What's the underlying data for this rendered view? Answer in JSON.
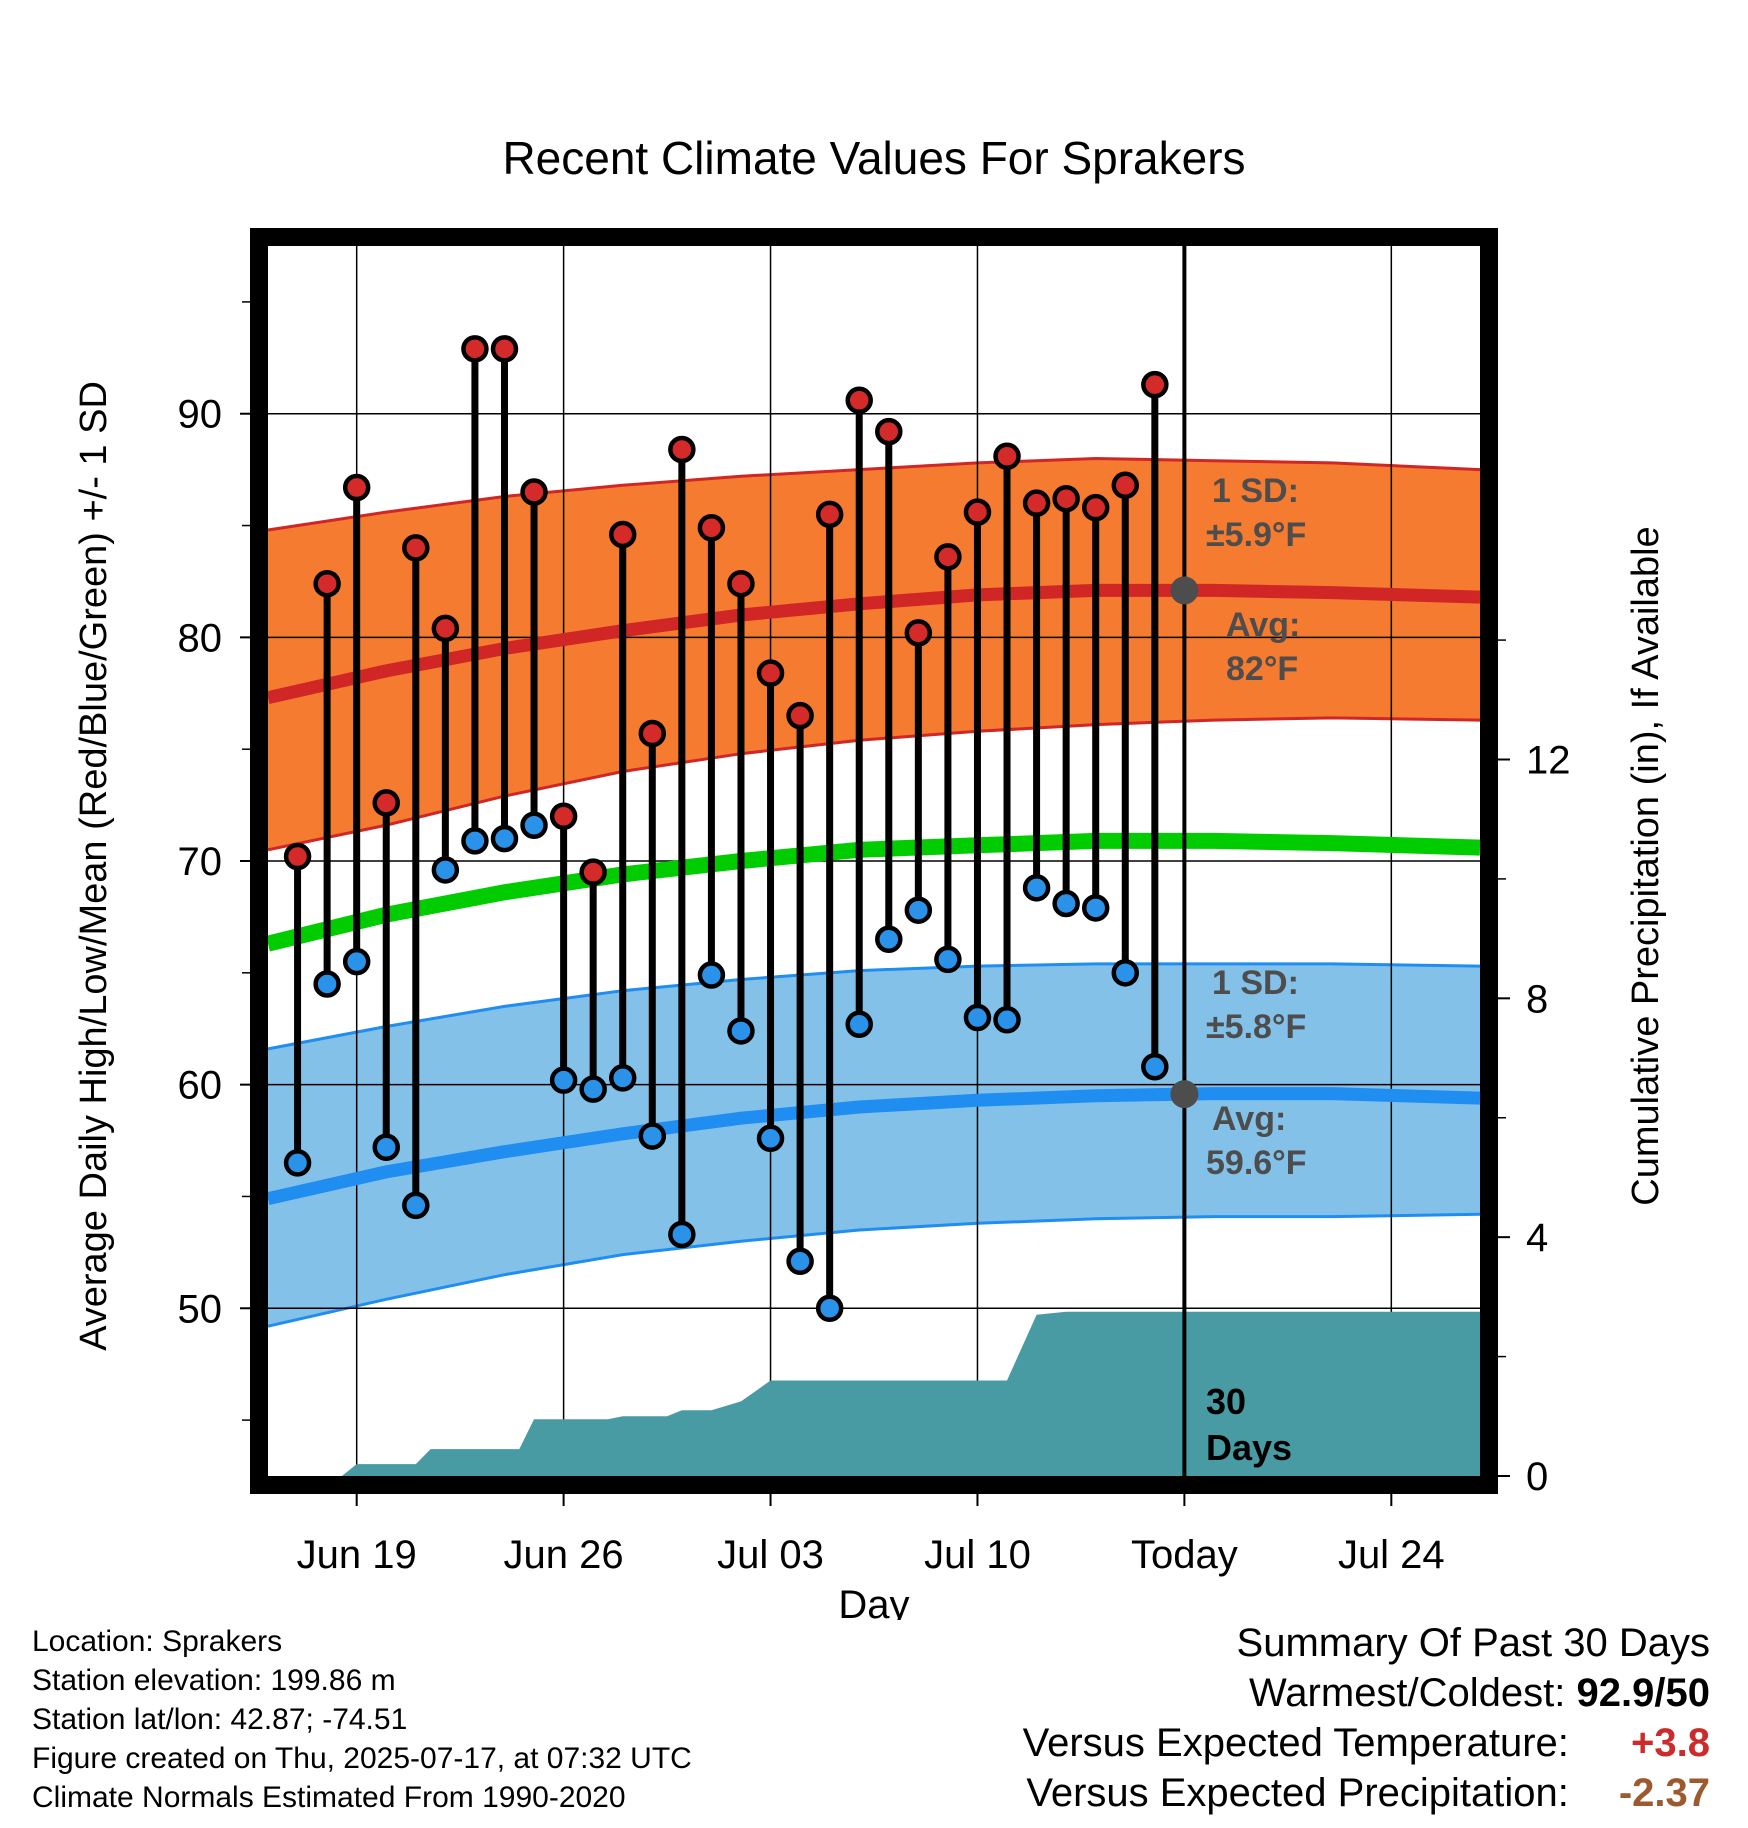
{
  "chart_data": {
    "type": "line",
    "title": "Recent Climate Values For Sprakers",
    "xlabel": "Day",
    "ylabel": "Average Daily High/Low/Mean (Red/Blue/Green) +/- 1 SD",
    "y2label": "Cumulative Precipitation (in), If Available",
    "xlim": [
      0,
      41
    ],
    "ylim": [
      42.5,
      97.5
    ],
    "y2lim": [
      0,
      20.6
    ],
    "yticks": [
      50,
      60,
      70,
      80,
      90
    ],
    "y2ticks": [
      0,
      4,
      8,
      12
    ],
    "xtick_labels": [
      {
        "day": 3,
        "label": "Jun 19"
      },
      {
        "day": 10,
        "label": "Jun 26"
      },
      {
        "day": 17,
        "label": "Jul 03"
      },
      {
        "day": 24,
        "label": "Jul 10"
      },
      {
        "day": 31,
        "label": "Today"
      },
      {
        "day": 38,
        "label": "Jul 24"
      }
    ],
    "today_day": 31,
    "grid": true,
    "colors": {
      "high_band": "#f47b30",
      "high_line": "#d02626",
      "low_band": "#84c1e8",
      "low_line": "#1f8ef0",
      "mean_line": "#00cc00",
      "precip_fill": "#489ba3",
      "high_marker": "#d42a2a",
      "low_marker": "#2a92e8",
      "today_marker": "#4d4d4d"
    },
    "daily": {
      "days": [
        1,
        2,
        3,
        4,
        5,
        6,
        7,
        8,
        9,
        10,
        11,
        12,
        13,
        14,
        15,
        16,
        17,
        18,
        19,
        20,
        21,
        22,
        23,
        24,
        25,
        26,
        27,
        28,
        29,
        30
      ],
      "high": [
        70.2,
        82.4,
        86.7,
        72.6,
        84.0,
        80.4,
        92.9,
        92.9,
        86.5,
        72.0,
        69.5,
        84.6,
        75.7,
        88.4,
        84.9,
        82.4,
        78.4,
        76.5,
        85.5,
        90.6,
        89.2,
        80.2,
        83.6,
        85.6,
        88.1,
        86.0,
        86.2,
        85.8,
        86.8,
        91.3
      ],
      "low": [
        56.5,
        64.5,
        65.5,
        57.2,
        54.6,
        69.6,
        70.9,
        71.0,
        71.6,
        60.2,
        59.8,
        60.3,
        57.7,
        53.3,
        64.9,
        62.4,
        57.6,
        52.1,
        50.0,
        62.7,
        66.5,
        67.8,
        65.6,
        63.0,
        62.9,
        68.8,
        68.1,
        67.9,
        65.0,
        60.8
      ]
    },
    "normals": {
      "days": [
        0,
        4,
        8,
        12,
        16,
        20,
        24,
        28,
        32,
        36,
        41
      ],
      "avg_high": [
        77.3,
        78.5,
        79.5,
        80.3,
        81.0,
        81.5,
        81.9,
        82.1,
        82.1,
        82.0,
        81.8
      ],
      "high_upper": [
        84.8,
        85.6,
        86.3,
        86.8,
        87.2,
        87.5,
        87.8,
        88.0,
        87.9,
        87.8,
        87.5
      ],
      "high_lower": [
        70.5,
        71.6,
        72.9,
        74.0,
        74.8,
        75.4,
        75.8,
        76.1,
        76.3,
        76.4,
        76.3
      ],
      "avg_mean": [
        66.3,
        67.6,
        68.6,
        69.4,
        70.0,
        70.5,
        70.7,
        70.9,
        70.9,
        70.8,
        70.6
      ],
      "avg_low": [
        54.9,
        56.1,
        57.0,
        57.8,
        58.5,
        59.0,
        59.3,
        59.5,
        59.6,
        59.6,
        59.4
      ],
      "low_upper": [
        61.6,
        62.6,
        63.5,
        64.2,
        64.7,
        65.1,
        65.3,
        65.4,
        65.4,
        65.4,
        65.3
      ],
      "low_lower": [
        49.2,
        50.4,
        51.5,
        52.4,
        53.0,
        53.5,
        53.8,
        54.0,
        54.1,
        54.1,
        54.2
      ]
    },
    "precip": {
      "days": [
        0,
        2.5,
        3,
        5,
        5.5,
        8.5,
        9,
        11.5,
        12,
        13.5,
        14,
        15,
        16,
        17,
        25,
        26,
        27,
        31,
        41
      ],
      "cumulative": [
        0,
        0,
        0.2,
        0.2,
        0.45,
        0.45,
        0.95,
        0.95,
        1.0,
        1.0,
        1.1,
        1.1,
        1.25,
        1.6,
        1.6,
        2.7,
        2.75,
        2.75,
        2.75
      ]
    },
    "annotations": {
      "high_sd_line1": "1 SD:",
      "high_sd_line2": "±5.9°F",
      "high_avg_line1": "Avg:",
      "high_avg_line2": "82°F",
      "low_sd_line1": "1 SD:",
      "low_sd_line2": "±5.8°F",
      "low_avg_line1": "Avg:",
      "low_avg_line2": "59.6°F",
      "precip_line1": "30",
      "precip_line2": "Days"
    }
  },
  "footer": {
    "location": "Location: Sprakers",
    "elevation": "Station elevation: 199.86 m",
    "latlon": "Station lat/lon: 42.87; -74.51",
    "created": "Figure created on Thu, 2025-07-17, at 07:32 UTC",
    "normals": "Climate Normals Estimated From 1990-2020"
  },
  "summary": {
    "heading": "Summary Of Past 30 Days",
    "warmest_label": "Warmest/Coldest:",
    "warmest_value": "92.9/50",
    "temp_label": "Versus Expected Temperature:",
    "temp_value": "+3.8",
    "precip_label": "Versus Expected Precipitation:",
    "precip_value": "-2.37"
  }
}
